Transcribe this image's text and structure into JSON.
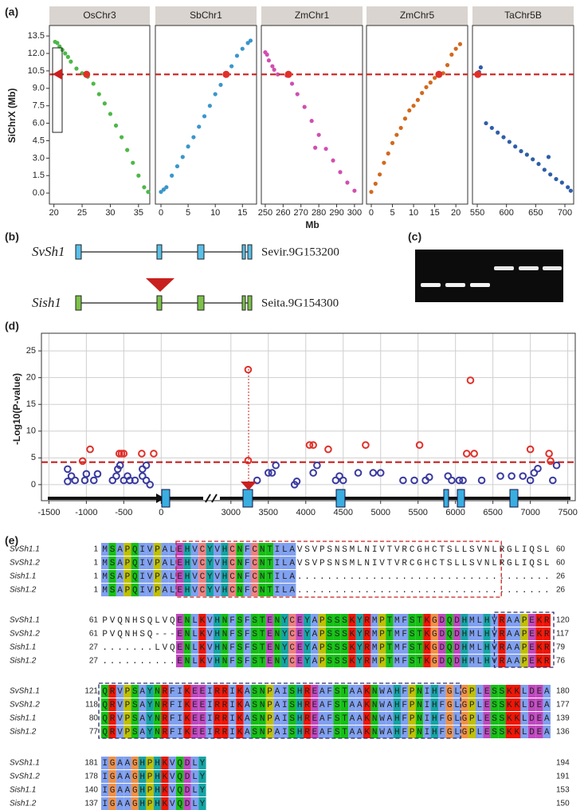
{
  "chart_data": [
    {
      "type": "scatter",
      "label": "(a)",
      "y_label": "SiChrX (Mb)",
      "x_label": "Mb",
      "ylim": [
        -0.95,
        14.4
      ],
      "yticks": [
        13.5,
        {
          "value": 12,
          "label": "12.0"
        },
        10.5,
        {
          "value": 9,
          "label": "9.0"
        },
        7.5,
        {
          "value": 6,
          "label": "6.0"
        },
        4.5,
        {
          "value": 3,
          "label": "3.0"
        },
        1.5,
        {
          "value": 0,
          "label": "0.0"
        }
      ],
      "reference_y": 10.2,
      "reference_color": "#c8201e",
      "highlight_color": "#e0302a",
      "facets": [
        {
          "title": "OsChr3",
          "color": "#4db848",
          "xlim": [
            19.2,
            37
          ],
          "xticks": [
            20,
            25,
            30,
            35
          ],
          "x": [
            20.2,
            20.6,
            21,
            21.5,
            22,
            22.5,
            23,
            24,
            25,
            26,
            27,
            28,
            29,
            30,
            31,
            32,
            33,
            34,
            35,
            36,
            36.7
          ],
          "values": [
            13.0,
            12.9,
            12.6,
            12.3,
            12.0,
            11.7,
            11.3,
            10.7,
            10.3,
            10.0,
            9.4,
            8.5,
            7.7,
            6.8,
            5.8,
            4.8,
            3.7,
            2.6,
            1.5,
            0.5,
            0.1
          ],
          "highlight": {
            "x": 25.8,
            "y": 10.2
          }
        },
        {
          "title": "SbChr1",
          "color": "#3a96cc",
          "xlim": [
            -1.03,
            17.6
          ],
          "xticks": [
            0,
            5,
            10,
            15
          ],
          "x": [
            0,
            0.5,
            1,
            2,
            3,
            4,
            5,
            6,
            7,
            8,
            9,
            10,
            11,
            12,
            13,
            14,
            15,
            16,
            16.5
          ],
          "values": [
            0.1,
            0.3,
            0.5,
            1.5,
            2.3,
            3.1,
            4.0,
            4.8,
            5.7,
            6.6,
            7.5,
            8.5,
            9.3,
            10.1,
            10.9,
            11.8,
            12.4,
            12.9,
            13.1
          ],
          "highlight": {
            "x": 12,
            "y": 10.2
          }
        },
        {
          "title": "ZmChr1",
          "color": "#d04fb0",
          "xlim": [
            247.8,
            304.5
          ],
          "xticks": [
            250,
            260,
            270,
            280,
            290,
            300
          ],
          "x": [
            250,
            251,
            252,
            254,
            255,
            257,
            262,
            265,
            268,
            272,
            276,
            278,
            280,
            284,
            288,
            292,
            296,
            300
          ],
          "values": [
            12.1,
            11.9,
            11.4,
            10.9,
            10.6,
            10.2,
            10.1,
            9.4,
            8.5,
            7.4,
            6.2,
            3.9,
            5.0,
            3.8,
            2.8,
            1.8,
            0.9,
            0.2
          ],
          "highlight": {
            "x": 263,
            "y": 10.2
          }
        },
        {
          "title": "ZmChr5",
          "color": "#d2691e",
          "xlim": [
            -1.13,
            22.8
          ],
          "xticks": [
            0,
            5,
            10,
            15,
            20
          ],
          "x": [
            0,
            1,
            2,
            3,
            4,
            5,
            6,
            7,
            8,
            9,
            10,
            11,
            12,
            13,
            14,
            15,
            16,
            17,
            18,
            19,
            20,
            21
          ],
          "values": [
            0.1,
            0.8,
            1.6,
            2.6,
            3.4,
            4.3,
            5.0,
            5.6,
            6.4,
            7.1,
            7.5,
            8.0,
            8.6,
            9.1,
            9.5,
            9.9,
            10.1,
            10.3,
            11.0,
            11.9,
            12.4,
            12.8
          ],
          "highlight": {
            "x": 16,
            "y": 10.2
          }
        },
        {
          "title": "TaChr5B",
          "color": "#2f5ea8",
          "xlim": [
            541.8,
            715
          ],
          "xticks": [
            550,
            600,
            650,
            700
          ],
          "x": [
            553,
            556,
            565,
            575,
            585,
            595,
            605,
            615,
            625,
            635,
            645,
            655,
            665,
            672,
            675,
            685,
            695,
            705,
            710
          ],
          "values": [
            10.4,
            10.8,
            6.0,
            5.6,
            5.2,
            4.8,
            4.4,
            4.0,
            3.6,
            3.3,
            2.9,
            2.5,
            2.0,
            3.1,
            1.6,
            1.2,
            0.9,
            0.5,
            0.2
          ],
          "highlight": {
            "x": 551,
            "y": 10.2
          }
        }
      ]
    },
    {
      "type": "scatter",
      "label": "(d)",
      "y_label": "-Log10(P-value)",
      "xlim": [
        -1600,
        7600
      ],
      "x_break": [
        100,
        2850
      ],
      "xticks": [
        -1500,
        -1000,
        -500,
        0,
        3000,
        3500,
        4000,
        4500,
        5000,
        5500,
        6000,
        6500,
        7000,
        7500
      ],
      "ylim": [
        -3,
        28.3
      ],
      "yticks": [
        0,
        5,
        10,
        15,
        20,
        25
      ],
      "grid": true,
      "threshold": 4.2,
      "threshold_color": "#c8201e",
      "series": [
        {
          "color": "#3a3aa0",
          "x": [
            -1250,
            -1200,
            -1250,
            -1150,
            -1000,
            -1020,
            -900,
            -850,
            -650,
            -600,
            -580,
            -550,
            -500,
            -450,
            -420,
            -350,
            -250,
            -250,
            -200,
            -150,
            -200,
            3350,
            3500,
            3550,
            3600,
            3850,
            3880,
            4100,
            4150,
            4400,
            4450,
            4500,
            4700,
            4900,
            5000,
            5300,
            5450,
            5600,
            5650,
            5900,
            5950,
            6050,
            6100,
            6350,
            6600,
            6750,
            6900,
            7000,
            7050,
            7100,
            7300,
            7350
          ],
          "values": [
            2.9,
            1.6,
            0.6,
            0.8,
            2.0,
            0.8,
            0.8,
            2.0,
            0.8,
            1.6,
            2.9,
            3.6,
            0.8,
            1.6,
            0.8,
            0.8,
            2.9,
            1.6,
            0.8,
            0.0,
            3.6,
            0.8,
            2.2,
            2.2,
            3.6,
            0.0,
            0.6,
            2.2,
            3.6,
            0.8,
            1.6,
            0.8,
            2.2,
            2.2,
            2.2,
            0.8,
            0.8,
            0.8,
            1.4,
            1.6,
            0.8,
            0.8,
            0.8,
            0.8,
            1.6,
            1.6,
            1.6,
            0.8,
            2.2,
            3.0,
            0.8,
            3.6
          ]
        },
        {
          "color": "#e0302a",
          "x": [
            -1050,
            -950,
            -560,
            -530,
            -500,
            -260,
            -100,
            3230,
            3230,
            4050,
            4100,
            4300,
            4800,
            5520,
            6200,
            6150,
            6250,
            7000,
            7250,
            7270
          ],
          "values": [
            4.4,
            6.6,
            5.8,
            5.8,
            5.8,
            5.8,
            5.8,
            21.5,
            4.5,
            7.4,
            7.4,
            6.6,
            7.4,
            7.4,
            19.5,
            5.8,
            5.8,
            6.6,
            5.8,
            4.4
          ]
        }
      ]
    }
  ],
  "gene_structure": {
    "label": "(b)",
    "genes": [
      {
        "name": "SvSh1",
        "id": "Sevir.9G153200"
      },
      {
        "name": "Sish1",
        "id": "Seita.9G154300"
      }
    ]
  },
  "gel": {
    "label": "(c)"
  },
  "alignment": {
    "label": "(e)",
    "blocks": [
      {
        "rows": [
          {
            "name": "SvSh1.1",
            "start": 1,
            "seq": "MSAPQIVPALEHVCYVHCNFCNTILAVSVPSNSMLNIVTVRCGHCTSLLSVNLRGLIQSL",
            "end": 60
          },
          {
            "name": "SvSh1.2",
            "start": 1,
            "seq": "MSAPQIVPALEHVCYVHCNFCNTILAVSVPSNSMLNIVTVRCGHCTSLLSVNLRGLIQSL",
            "end": 60
          },
          {
            "name": "Sish1.1",
            "start": 1,
            "seq": "MSAPQIVPALEHVCYVHCNFCNTILA..................................",
            "end": 26
          },
          {
            "name": "Sish1.2",
            "start": 1,
            "seq": "MSAPQIVPALEHVCYVHCNFCNTILA..................................",
            "end": 26
          }
        ]
      },
      {
        "rows": [
          {
            "name": "SvSh1.1",
            "start": 61,
            "seq": "PVQNHSQLVQENLKVHNFSFSTENYCEYAPSSSKYRMPTMFSTKGDQDHMLHVRAAPEKR",
            "end": 120
          },
          {
            "name": "SvSh1.2",
            "start": 61,
            "seq": "PVQNHSQ---ENLKVHNFSFSTENYCEYAPSSSKYRMPTMFSTKGDQDHMLHVRAAPEKR",
            "end": 117
          },
          {
            "name": "Sish1.1",
            "start": 27,
            "seq": ".......LVQENLKVHNFSFSTENYCEYAPSSSKYRMPTMFSTKGDQDHMLHVRAAPEKR",
            "end": 79
          },
          {
            "name": "Sish1.2",
            "start": 27,
            "seq": "..........ENLKVHNFSFSTENYCEYAPSSSKYRMPTMFSTKGDQDHMLHVRAAPEKR",
            "end": 76
          }
        ]
      },
      {
        "rows": [
          {
            "name": "SvSh1.1",
            "start": 121,
            "seq": "QRVPSAYNRFIKEEIRRIKASNPAISHREAFSTAAKNWAHFPNIHFGLGPLESSKKLDEA",
            "end": 180
          },
          {
            "name": "SvSh1.2",
            "start": 118,
            "seq": "QRVPSAYNRFIKEEIRRIKASNPAISHREAFSTAAKNWAHFPNIHFGLGPLESSKKLDEA",
            "end": 177
          },
          {
            "name": "Sish1.1",
            "start": 80,
            "seq": "QRVPSAYNRFIKEEIRRIKASNPAISHREAFSTAAKNWAHFPNIHFGLGPLESSKKLDEA",
            "end": 139
          },
          {
            "name": "Sish1.2",
            "start": 77,
            "seq": "QRVPSAYNRFIKEEIRRIKASNPAISHREAFSTAAKNWAHFPNIHFGLGPLESSKKLDEA",
            "end": 136
          }
        ]
      },
      {
        "rows": [
          {
            "name": "SvSh1.1",
            "start": 181,
            "seq": "IGAAGHPHKVQDLY",
            "end": 194
          },
          {
            "name": "SvSh1.2",
            "start": 178,
            "seq": "IGAAGHPHKVQDLY",
            "end": 191
          },
          {
            "name": "Sish1.1",
            "start": 140,
            "seq": "IGAAGHPHKVQDLY",
            "end": 153
          },
          {
            "name": "Sish1.2",
            "start": 137,
            "seq": "IGAAGHPHKVQDLY",
            "end": 150
          }
        ]
      }
    ]
  }
}
